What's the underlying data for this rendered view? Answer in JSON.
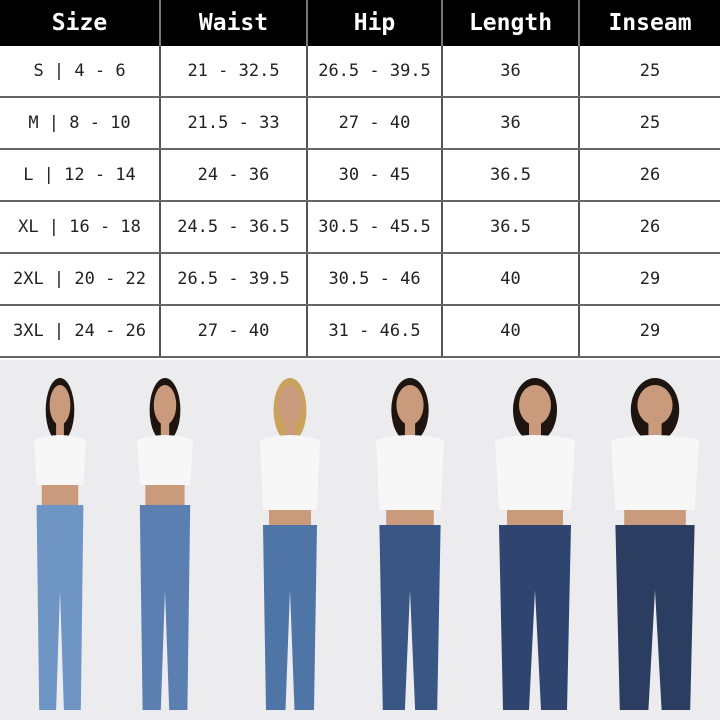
{
  "size_chart": {
    "headers": [
      "Size",
      "Waist",
      "Hip",
      "Length",
      "Inseam"
    ],
    "rows": [
      [
        "S | 4 - 6",
        "21 - 32.5",
        "26.5 - 39.5",
        "36",
        "25"
      ],
      [
        "M | 8 - 10",
        "21.5 - 33",
        "27 - 40",
        "36",
        "25"
      ],
      [
        "L | 12 - 14",
        "24 - 36",
        "30 - 45",
        "36.5",
        "26"
      ],
      [
        "XL | 16 - 18",
        "24.5 - 36.5",
        "30.5 - 45.5",
        "36.5",
        "26"
      ],
      [
        "2XL | 20 - 22",
        "26.5 - 39.5",
        "30.5 - 46",
        "40",
        "29"
      ],
      [
        "3XL | 24 - 26",
        "27 - 40",
        "31 - 46.5",
        "40",
        "29"
      ]
    ]
  },
  "photo": {
    "models": 6,
    "colors": {
      "background": "#ececee",
      "top": "#f7f7f7",
      "jeans": [
        "#6f95c4",
        "#5a7fb0",
        "#4f74a6",
        "#3a5685",
        "#2f4570",
        "#2b3d60"
      ]
    }
  }
}
